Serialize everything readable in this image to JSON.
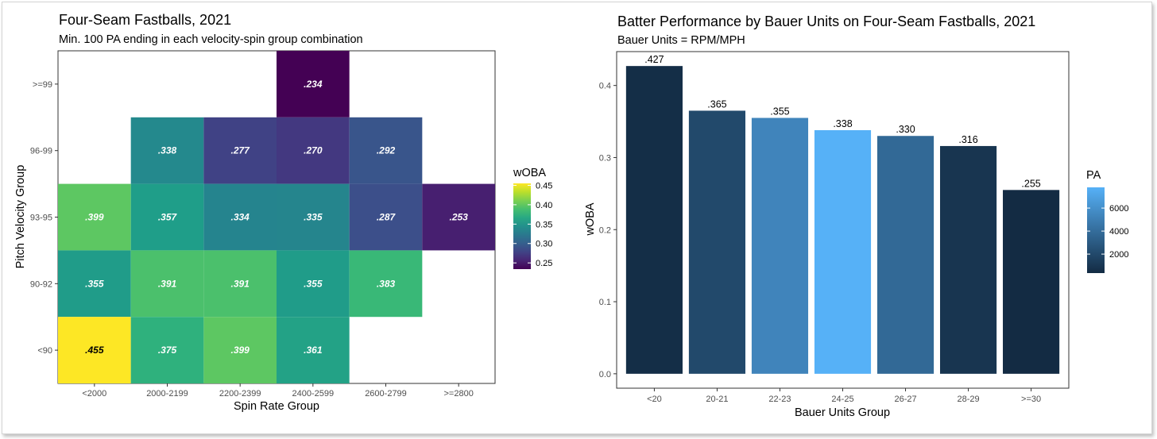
{
  "chart_data": [
    {
      "type": "heatmap",
      "title": "Four-Seam Fastballs, 2021",
      "subtitle": "Min. 100 PA ending in each velocity-spin group combination",
      "xlabel": "Spin Rate Group",
      "ylabel": "Pitch Velocity Group",
      "x_categories": [
        "<2000",
        "2000-2199",
        "2200-2399",
        "2400-2599",
        "2600-2799",
        ">=2800"
      ],
      "y_categories": [
        "<90",
        "90-92",
        "93-95",
        "96-99",
        ">=99"
      ],
      "cells": [
        {
          "x": "2400-2599",
          "y": ">=99",
          "value": 0.234,
          "label": ".234"
        },
        {
          "x": "2000-2199",
          "y": "96-99",
          "value": 0.338,
          "label": ".338"
        },
        {
          "x": "2200-2399",
          "y": "96-99",
          "value": 0.277,
          "label": ".277"
        },
        {
          "x": "2400-2599",
          "y": "96-99",
          "value": 0.27,
          "label": ".270"
        },
        {
          "x": "2600-2799",
          "y": "96-99",
          "value": 0.292,
          "label": ".292"
        },
        {
          "x": "<2000",
          "y": "93-95",
          "value": 0.399,
          "label": ".399"
        },
        {
          "x": "2000-2199",
          "y": "93-95",
          "value": 0.357,
          "label": ".357"
        },
        {
          "x": "2200-2399",
          "y": "93-95",
          "value": 0.334,
          "label": ".334"
        },
        {
          "x": "2400-2599",
          "y": "93-95",
          "value": 0.335,
          "label": ".335"
        },
        {
          "x": "2600-2799",
          "y": "93-95",
          "value": 0.287,
          "label": ".287"
        },
        {
          "x": ">=2800",
          "y": "93-95",
          "value": 0.253,
          "label": ".253"
        },
        {
          "x": "<2000",
          "y": "90-92",
          "value": 0.355,
          "label": ".355"
        },
        {
          "x": "2000-2199",
          "y": "90-92",
          "value": 0.391,
          "label": ".391"
        },
        {
          "x": "2200-2399",
          "y": "90-92",
          "value": 0.391,
          "label": ".391"
        },
        {
          "x": "2400-2599",
          "y": "90-92",
          "value": 0.355,
          "label": ".355"
        },
        {
          "x": "2600-2799",
          "y": "90-92",
          "value": 0.383,
          "label": ".383"
        },
        {
          "x": "<2000",
          "y": "<90",
          "value": 0.455,
          "label": ".455"
        },
        {
          "x": "2000-2199",
          "y": "<90",
          "value": 0.375,
          "label": ".375"
        },
        {
          "x": "2200-2399",
          "y": "<90",
          "value": 0.399,
          "label": ".399"
        },
        {
          "x": "2400-2599",
          "y": "<90",
          "value": 0.361,
          "label": ".361"
        }
      ],
      "legend": {
        "title": "wOBA",
        "placement": "right",
        "min": 0.234,
        "max": 0.455,
        "ticks": [
          0.25,
          0.3,
          0.35,
          0.4,
          0.45
        ],
        "tick_labels": [
          "0.25",
          "0.30",
          "0.35",
          "0.40",
          "0.45"
        ],
        "colormap": "viridis"
      },
      "grid": false
    },
    {
      "type": "bar",
      "title": "Batter Performance by Bauer Units on Four-Seam Fastballs, 2021",
      "subtitle": "Bauer Units = RPM/MPH",
      "xlabel": "Bauer Units Group",
      "ylabel": "wOBA",
      "categories": [
        "<20",
        "20-21",
        "22-23",
        "24-25",
        "26-27",
        "28-29",
        ">=30"
      ],
      "values": [
        0.427,
        0.365,
        0.355,
        0.338,
        0.33,
        0.316,
        0.255
      ],
      "value_labels": [
        ".427",
        ".365",
        ".355",
        ".338",
        ".330",
        ".316",
        ".255"
      ],
      "pa": [
        500,
        2000,
        5300,
        7800,
        3800,
        900,
        350
      ],
      "ylim": [
        0,
        0.45
      ],
      "yticks": [
        0.0,
        0.1,
        0.2,
        0.3,
        0.4
      ],
      "ytick_labels": [
        "0.0",
        "0.1",
        "0.2",
        "0.3",
        "0.4"
      ],
      "legend": {
        "title": "PA",
        "placement": "right",
        "min": 350,
        "max": 7800,
        "ticks": [
          2000,
          4000,
          6000
        ],
        "tick_labels": [
          "2000",
          "4000",
          "6000"
        ],
        "color_low": "#132B43",
        "color_high": "#56B1F7"
      },
      "grid": false
    }
  ]
}
